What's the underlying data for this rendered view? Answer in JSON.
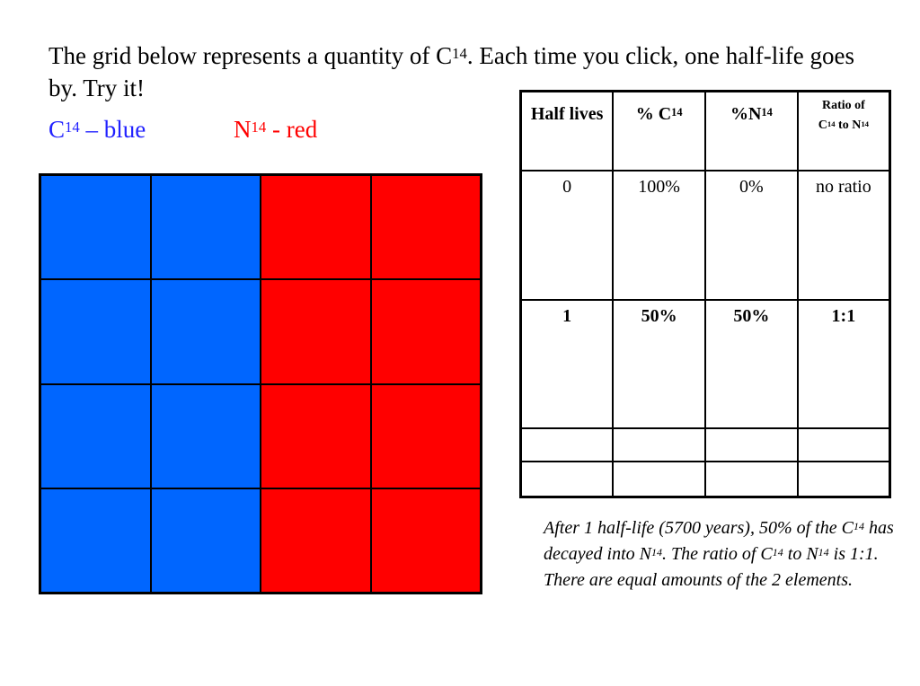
{
  "intro": {
    "part1": "The grid below represents a quantity of C",
    "sup1": "14",
    "part2": ". Each time you click, one half-life goes by. Try it!"
  },
  "legend": {
    "c_base": "C",
    "c_sup": "14",
    "c_text": " – blue",
    "n_base": "N",
    "n_sup": "14",
    "n_text": " - red",
    "colors": {
      "blue": "#0066ff",
      "red": "#ff0000"
    }
  },
  "grid": {
    "rows": 4,
    "cols": 4,
    "cells": [
      [
        "blue",
        "blue",
        "red",
        "red"
      ],
      [
        "blue",
        "blue",
        "red",
        "red"
      ],
      [
        "blue",
        "blue",
        "red",
        "red"
      ],
      [
        "blue",
        "blue",
        "red",
        "red"
      ]
    ]
  },
  "table": {
    "headers": {
      "half_lives": "Half lives",
      "pct_c_base": "% C",
      "pct_c_sup": "14",
      "pct_n_base": "%N",
      "pct_n_sup": "14",
      "ratio_line1": "Ratio of",
      "ratio_c": "C",
      "ratio_c_sup": "14",
      "ratio_to": " to N",
      "ratio_n_sup": "14"
    },
    "rows": [
      {
        "half_lives": "0",
        "pct_c": "100%",
        "pct_n": "0%",
        "ratio": "no ratio"
      },
      {
        "half_lives": "1",
        "pct_c": "50%",
        "pct_n": "50%",
        "ratio": "1:1"
      },
      {
        "half_lives": "",
        "pct_c": "",
        "pct_n": "",
        "ratio": ""
      },
      {
        "half_lives": "",
        "pct_c": "",
        "pct_n": "",
        "ratio": ""
      }
    ]
  },
  "note": {
    "t1": "After 1 half-life (5700 years), 50% of the C",
    "s1": "14",
    "t2": " has decayed into N",
    "s2": "14",
    "t3": ". The ratio of C",
    "s3": "14",
    "t4": " to N",
    "s4": "14",
    "t5": " is 1:1. There are equal amounts of the 2 elements."
  }
}
